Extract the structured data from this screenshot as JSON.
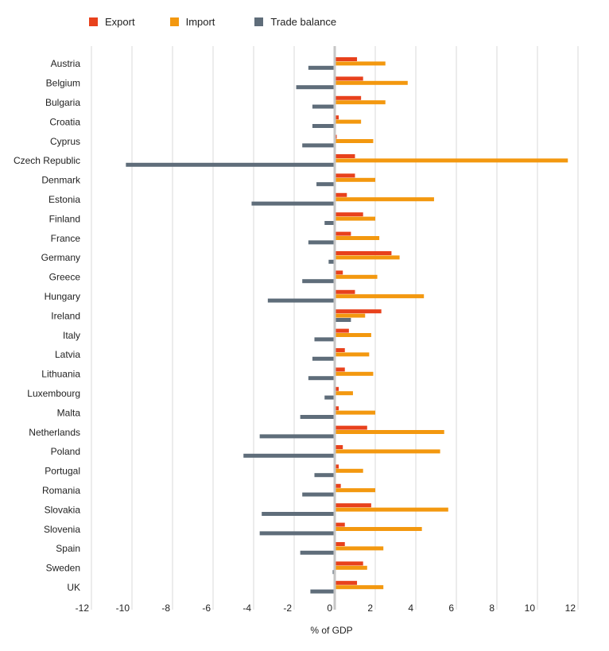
{
  "chart_data": {
    "type": "bar",
    "orientation": "horizontal",
    "xlabel": "% of GDP",
    "xlim": [
      -12,
      12
    ],
    "xticks": [
      -12,
      -10,
      -8,
      -6,
      -4,
      -2,
      0,
      2,
      4,
      6,
      8,
      10,
      12
    ],
    "grid": true,
    "legend_position": "top-left",
    "categories": [
      "Austria",
      "Belgium",
      "Bulgaria",
      "Croatia",
      "Cyprus",
      "Czech Republic",
      "Denmark",
      "Estonia",
      "Finland",
      "France",
      "Germany",
      "Greece",
      "Hungary",
      "Ireland",
      "Italy",
      "Latvia",
      "Lithuania",
      "Luxembourg",
      "Malta",
      "Netherlands",
      "Poland",
      "Portugal",
      "Romania",
      "Slovakia",
      "Slovenia",
      "Spain",
      "Sweden",
      "UK"
    ],
    "series": [
      {
        "name": "Export",
        "color": "#e8411c",
        "values": [
          1.1,
          1.4,
          1.3,
          0.2,
          0.1,
          1.0,
          1.0,
          0.6,
          1.4,
          0.8,
          2.8,
          0.4,
          1.0,
          2.3,
          0.7,
          0.5,
          0.5,
          0.2,
          0.2,
          1.6,
          0.4,
          0.2,
          0.3,
          1.8,
          0.5,
          0.5,
          1.4,
          1.1
        ]
      },
      {
        "name": "Import",
        "color": "#f3980f",
        "values": [
          2.5,
          3.6,
          2.5,
          1.3,
          1.9,
          11.5,
          2.0,
          4.9,
          2.0,
          2.2,
          3.2,
          2.1,
          4.4,
          1.5,
          1.8,
          1.7,
          1.9,
          0.9,
          2.0,
          5.4,
          5.2,
          1.4,
          2.0,
          5.6,
          4.3,
          2.4,
          1.6,
          2.4
        ]
      },
      {
        "name": "Trade balance",
        "color": "#5f6d7a",
        "values": [
          -1.3,
          -1.9,
          -1.1,
          -1.1,
          -1.6,
          -10.3,
          -0.9,
          -4.1,
          -0.5,
          -1.3,
          -0.3,
          -1.6,
          -3.3,
          0.8,
          -1.0,
          -1.1,
          -1.3,
          -0.5,
          -1.7,
          -3.7,
          -4.5,
          -1.0,
          -1.6,
          -3.6,
          -3.7,
          -1.7,
          -0.1,
          -1.2
        ]
      }
    ]
  }
}
